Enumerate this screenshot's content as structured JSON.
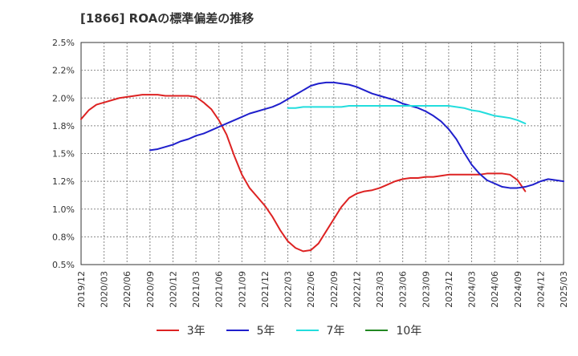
{
  "chart_data": {
    "type": "line",
    "title": "[1866]  ROAの標準偏差の推移",
    "xlabel": "",
    "ylabel": "",
    "ylim": [
      0.5,
      2.5
    ],
    "yticks": [
      "0.5%",
      "0.8%",
      "1.0%",
      "1.2%",
      "1.5%",
      "1.8%",
      "2.0%",
      "2.2%",
      "2.5%"
    ],
    "x_ticks": [
      "2019/12",
      "2020/03",
      "2020/06",
      "2020/09",
      "2020/12",
      "2021/03",
      "2021/06",
      "2021/09",
      "2021/12",
      "2022/03",
      "2022/06",
      "2022/09",
      "2022/12",
      "2023/03",
      "2023/06",
      "2023/09",
      "2023/12",
      "2024/03",
      "2024/06",
      "2024/09",
      "2024/12",
      "2025/03"
    ],
    "grid": true,
    "legend_position": "bottom",
    "series": [
      {
        "name": "3年",
        "color": "#dd2222",
        "start_index": 0,
        "values": [
          1.81,
          1.89,
          1.94,
          1.96,
          1.98,
          2.0,
          2.01,
          2.02,
          2.03,
          2.03,
          2.03,
          2.02,
          2.02,
          2.02,
          2.02,
          2.01,
          1.96,
          1.9,
          1.8,
          1.67,
          1.48,
          1.31,
          1.19,
          1.11,
          1.03,
          0.93,
          0.81,
          0.71,
          0.65,
          0.62,
          0.63,
          0.69,
          0.8,
          0.91,
          1.02,
          1.1,
          1.14,
          1.16,
          1.17,
          1.19,
          1.22,
          1.25,
          1.27,
          1.28,
          1.28,
          1.29,
          1.29,
          1.3,
          1.31,
          1.31,
          1.31,
          1.31,
          1.31,
          1.32,
          1.32,
          1.32,
          1.31,
          1.26,
          1.16
        ]
      },
      {
        "name": "5年",
        "color": "#1f1fcc",
        "start_index": 9,
        "values": [
          1.53,
          1.54,
          1.56,
          1.58,
          1.61,
          1.63,
          1.66,
          1.68,
          1.71,
          1.74,
          1.77,
          1.8,
          1.83,
          1.86,
          1.88,
          1.9,
          1.92,
          1.95,
          1.99,
          2.03,
          2.07,
          2.11,
          2.13,
          2.14,
          2.14,
          2.13,
          2.12,
          2.1,
          2.07,
          2.04,
          2.02,
          2.0,
          1.98,
          1.95,
          1.93,
          1.91,
          1.88,
          1.84,
          1.79,
          1.72,
          1.63,
          1.51,
          1.4,
          1.32,
          1.26,
          1.23,
          1.2,
          1.19,
          1.19,
          1.2,
          1.22,
          1.25,
          1.27,
          1.26,
          1.25
        ]
      },
      {
        "name": "7年",
        "color": "#22dddd",
        "start_index": 27,
        "values": [
          1.91,
          1.91,
          1.92,
          1.92,
          1.92,
          1.92,
          1.92,
          1.92,
          1.93,
          1.93,
          1.93,
          1.93,
          1.93,
          1.93,
          1.93,
          1.93,
          1.93,
          1.93,
          1.93,
          1.93,
          1.93,
          1.93,
          1.92,
          1.91,
          1.89,
          1.88,
          1.86,
          1.84,
          1.83,
          1.82,
          1.8,
          1.77
        ]
      },
      {
        "name": "10年",
        "color": "#228822",
        "start_index": 0,
        "values": []
      }
    ]
  }
}
